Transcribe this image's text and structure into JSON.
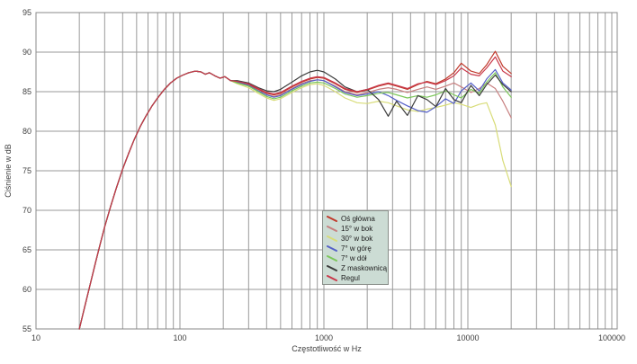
{
  "chart_data": {
    "type": "line",
    "title": "",
    "xlabel": "Częstotliwość w Hz",
    "ylabel": "Ciśnienie w dB",
    "x_scale": "log",
    "xlim": [
      10,
      100000
    ],
    "ylim": [
      55,
      95
    ],
    "x_ticks": [
      10,
      100,
      1000,
      10000,
      100000
    ],
    "x_tick_labels": [
      "10",
      "100",
      "1000",
      "10000",
      "100000"
    ],
    "y_ticks": [
      55,
      60,
      65,
      70,
      75,
      80,
      85,
      90,
      95
    ],
    "grid": true,
    "legend_position": "center-bottom",
    "common_rise": {
      "x": [
        20,
        21,
        22,
        24,
        26,
        28,
        30,
        33,
        36,
        40,
        44,
        48,
        53,
        58,
        64,
        70,
        78,
        86,
        95,
        105,
        115,
        128,
        140,
        150,
        160,
        175,
        190,
        205,
        225
      ],
      "db": [
        55.0,
        56.6,
        58.1,
        60.9,
        63.5,
        65.8,
        67.9,
        70.5,
        72.7,
        75.2,
        77.2,
        78.9,
        80.6,
        81.9,
        83.2,
        84.2,
        85.3,
        86.1,
        86.7,
        87.1,
        87.4,
        87.6,
        87.5,
        87.2,
        87.4,
        87.0,
        86.7,
        86.9,
        86.4
      ]
    },
    "x_mid": [
      250,
      300,
      350,
      400,
      450,
      500,
      600,
      700,
      800,
      900,
      1000,
      1200,
      1400,
      1700,
      2000,
      2400,
      2800,
      3200,
      3800,
      4500,
      5200,
      6000,
      7000,
      8000,
      9000,
      10500,
      12000,
      13500,
      15500,
      17500,
      20000
    ],
    "series": [
      {
        "name": "Oś główna",
        "color": "#c0392b",
        "db": [
          86.3,
          85.9,
          85.3,
          84.8,
          84.6,
          84.8,
          85.6,
          86.2,
          86.6,
          86.8,
          86.7,
          86.0,
          85.3,
          84.9,
          85.2,
          85.7,
          86.0,
          85.7,
          85.3,
          85.9,
          86.3,
          86.0,
          86.6,
          87.4,
          88.6,
          87.6,
          87.3,
          88.4,
          90.1,
          88.2,
          87.3
        ]
      },
      {
        "name": "15° w bok",
        "color": "#c77f7f",
        "db": [
          86.2,
          85.8,
          85.1,
          84.6,
          84.4,
          84.6,
          85.4,
          86.0,
          86.4,
          86.5,
          86.4,
          85.7,
          85.0,
          84.6,
          84.9,
          85.3,
          85.5,
          85.3,
          84.9,
          85.3,
          85.6,
          85.3,
          85.7,
          86.1,
          85.6,
          84.9,
          85.4,
          86.1,
          85.4,
          83.8,
          81.7
        ]
      },
      {
        "name": "30° w bok",
        "color": "#d8dc78",
        "db": [
          86.0,
          85.5,
          84.8,
          84.2,
          83.9,
          84.1,
          84.9,
          85.5,
          85.9,
          86.0,
          85.8,
          85.0,
          84.2,
          83.6,
          83.5,
          83.8,
          83.6,
          83.2,
          82.7,
          82.5,
          82.8,
          83.0,
          83.3,
          83.6,
          83.4,
          83.0,
          83.4,
          83.6,
          80.8,
          76.3,
          73.0
        ]
      },
      {
        "name": "7° w górę",
        "color": "#5560c8",
        "db": [
          86.2,
          85.8,
          85.1,
          84.6,
          84.3,
          84.5,
          85.3,
          85.9,
          86.3,
          86.5,
          86.4,
          85.6,
          84.9,
          84.5,
          84.7,
          85.0,
          84.5,
          83.9,
          83.2,
          82.6,
          82.4,
          83.1,
          84.1,
          83.5,
          85.1,
          86.1,
          85.1,
          86.6,
          87.8,
          86.1,
          85.2
        ]
      },
      {
        "name": "7° w dół",
        "color": "#7cc75a",
        "db": [
          86.1,
          85.7,
          85.0,
          84.4,
          84.1,
          84.3,
          85.1,
          85.7,
          86.1,
          86.2,
          86.1,
          85.4,
          84.7,
          84.3,
          84.5,
          84.8,
          84.9,
          84.6,
          84.2,
          84.5,
          84.3,
          84.6,
          85.1,
          84.6,
          84.2,
          85.3,
          84.8,
          86.2,
          87.4,
          85.6,
          84.3
        ]
      },
      {
        "name": "Z maskownicą",
        "color": "#3b3b3b",
        "db": [
          86.4,
          86.1,
          85.5,
          85.1,
          85.0,
          85.3,
          86.2,
          87.0,
          87.5,
          87.7,
          87.5,
          86.6,
          85.6,
          85.0,
          85.3,
          84.0,
          81.9,
          83.8,
          82.0,
          84.5,
          84.0,
          83.1,
          85.4,
          84.0,
          83.6,
          85.8,
          84.5,
          85.9,
          87.1,
          85.9,
          85.0
        ]
      },
      {
        "name": "Regul",
        "color": "#c9384a",
        "db": [
          86.3,
          86.0,
          85.4,
          84.9,
          84.7,
          84.9,
          85.7,
          86.3,
          86.7,
          86.9,
          86.8,
          86.1,
          85.4,
          85.0,
          85.3,
          85.8,
          86.1,
          85.8,
          85.4,
          86.0,
          86.2,
          85.9,
          86.4,
          87.0,
          88.0,
          87.2,
          87.0,
          88.0,
          89.4,
          87.6,
          86.9
        ]
      }
    ]
  },
  "colors": {
    "background": "#ffffff",
    "grid": "#9a9a9a",
    "axis_border": "#8a8a8a",
    "tick_text": "#3f3f3f",
    "legend_bg": "#ccdcd4",
    "legend_border": "#8a8f8a"
  }
}
